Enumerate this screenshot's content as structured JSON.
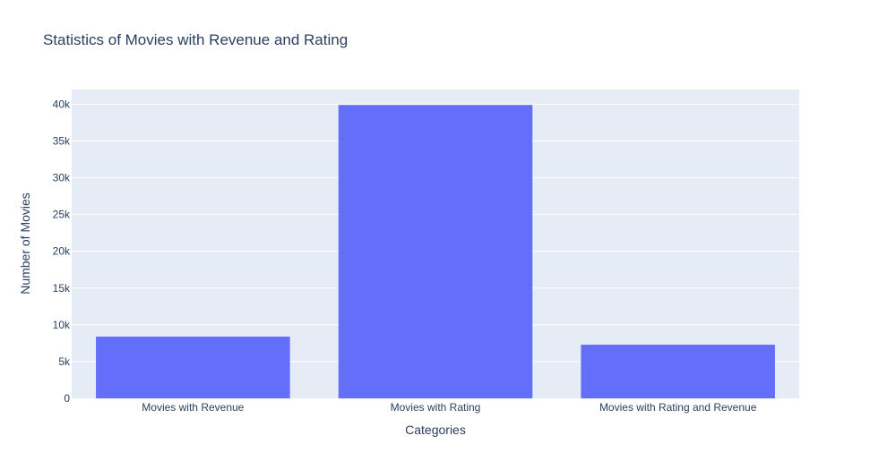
{
  "chart_data": {
    "type": "bar",
    "title": "Statistics of Movies with Revenue and Rating",
    "xlabel": "Categories",
    "ylabel": "Number of Movies",
    "categories": [
      "Movies with Revenue",
      "Movies with Rating",
      "Movies with Rating and Revenue"
    ],
    "values": [
      8400,
      39900,
      7300
    ],
    "ylim": [
      0,
      42000
    ],
    "yticks": [
      0,
      5000,
      10000,
      15000,
      20000,
      25000,
      30000,
      35000,
      40000
    ],
    "ytick_labels": [
      "0",
      "5k",
      "10k",
      "15k",
      "20k",
      "25k",
      "30k",
      "35k",
      "40k"
    ],
    "grid": true,
    "legend": "none",
    "colors": {
      "bar": "#636efa",
      "plot_bg": "#e5ecf6",
      "gridline": "#ffffff",
      "text": "#2a3f5f"
    }
  }
}
